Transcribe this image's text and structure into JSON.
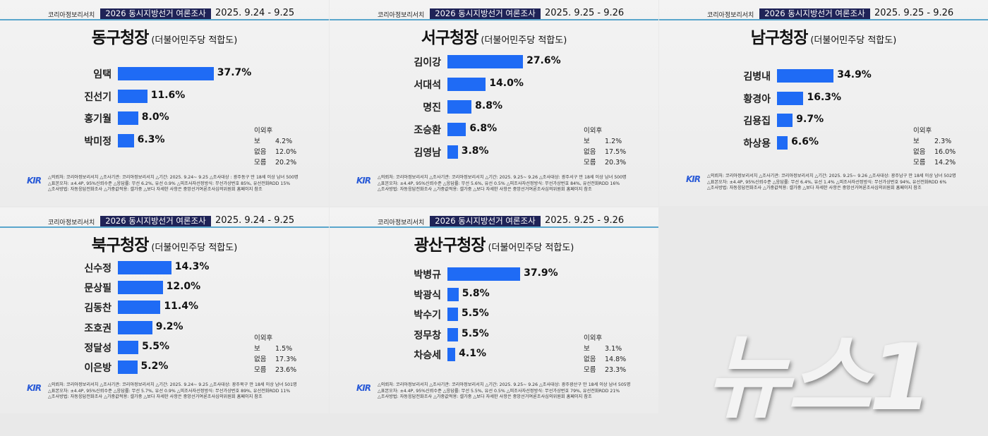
{
  "header": {
    "org": "코리아정보리서치",
    "survey_title": "2026 동시지방선거 여론조사"
  },
  "watermark": "뉴스1",
  "colors": {
    "bar": "#1f6bf5",
    "header_badge": "#1f2357",
    "header_line": "#5aa6cc"
  },
  "chart_data": [
    {
      "type": "bar",
      "orientation": "horizontal",
      "title": "동구청장",
      "subtitle": "(더불어민주당 적합도)",
      "date": "2025. 9.24 - 9.25",
      "categories": [
        "임택",
        "진선기",
        "홍기월",
        "박미정"
      ],
      "values": [
        37.7,
        11.6,
        8.0,
        6.3
      ],
      "labels": [
        "37.7%",
        "11.6%",
        "8.0%",
        "6.3%"
      ],
      "others": [
        {
          "label": "이외후보",
          "value": "4.2%"
        },
        {
          "label": "없음",
          "value": "12.0%"
        },
        {
          "label": "모름",
          "value": "20.2%"
        }
      ],
      "footnote": [
        "△의뢰처: 코리아정보리서치 △조사기관: 코리아정보리서치 △기간: 2025. 9.24~ 9.25 △조사대상 : 광주동구 만 18세 이상 남녀 500명",
        "△표본오차: ±4.4P, 95%신뢰수준 △응답률: 무선 6.2%, 유선 0.9% △피조사자선정방식: 무선가상번호 85%, 유선전화RDD 15%",
        "△조사방법: 자동응답전화조사 △가중값적용: 셀가중 △보다 자세한 사항은 중앙선거여론조사심의위원회 홈페이지 참조"
      ]
    },
    {
      "type": "bar",
      "orientation": "horizontal",
      "title": "서구청장",
      "subtitle": "(더불어민주당 적합도)",
      "date": "2025. 9.25 - 9.26",
      "categories": [
        "김이강",
        "서대석",
        "명진",
        "조승환",
        "김영남"
      ],
      "values": [
        27.6,
        14.0,
        8.8,
        6.8,
        3.8
      ],
      "labels": [
        "27.6%",
        "14.0%",
        "8.8%",
        "6.8%",
        "3.8%"
      ],
      "others": [
        {
          "label": "이외후보",
          "value": "1.2%"
        },
        {
          "label": "없음",
          "value": "17.5%"
        },
        {
          "label": "모름",
          "value": "20.3%"
        }
      ],
      "footnote": [
        "△의뢰처: 코리아정보리서치 △조사기관: 코리아정보리서치 △기간: 2025. 9.25~ 9.26 △조사대상: 광주서구 만 18세 이상 남녀 500명",
        "△표본오차: ±4.4P, 95%신뢰수준 △응답률: 무선 5.6%, 유선 0.5% △피조사자선정방식: 무선가상번호 84%, 유선전화RDD 16%",
        "△조사방법: 자동응답전화조사 △가중값적용: 셀가중 △보다 자세한 사항은 중앙선거여론조사심의위원회 홈페이지 참조"
      ]
    },
    {
      "type": "bar",
      "orientation": "horizontal",
      "title": "남구청장",
      "subtitle": "(더불어민주당 적합도)",
      "date": "2025. 9.25 - 9.26",
      "categories": [
        "김병내",
        "황경아",
        "김용집",
        "하상용"
      ],
      "values": [
        34.9,
        16.3,
        9.7,
        6.6
      ],
      "labels": [
        "34.9%",
        "16.3%",
        "9.7%",
        "6.6%"
      ],
      "others": [
        {
          "label": "이외후보",
          "value": "2.3%"
        },
        {
          "label": "없음",
          "value": "16.0%"
        },
        {
          "label": "모름",
          "value": "14.2%"
        }
      ],
      "footnote": [
        "△의뢰처: 코리아정보리서치 △조사기관: 코리아정보리서치 △기간: 2025. 9.25~ 9.26 △조사대상: 광주남구 만 18세 이상 남녀 502명",
        "△표본오차: ±4.4P, 95%신뢰수준 △응답률: 무선 6.4%, 유선 1.4% △피조사자선정방식: 무선가상번호 94%, 유선전화RDD 6%",
        "△조사방법: 자동응답전화조사 △가중값적용: 셀가중 △보다 자세한 사항은 중앙선거여론조사심의위원회 홈페이지 참조"
      ]
    },
    {
      "type": "bar",
      "orientation": "horizontal",
      "title": "북구청장",
      "subtitle": "(더불어민주당 적합도)",
      "date": "2025. 9.24 - 9.25",
      "categories": [
        "신수정",
        "문상필",
        "김동찬",
        "조호권",
        "정달성",
        "이은방"
      ],
      "values": [
        14.3,
        12.0,
        11.4,
        9.2,
        5.5,
        5.2
      ],
      "labels": [
        "14.3%",
        "12.0%",
        "11.4%",
        "9.2%",
        "5.5%",
        "5.2%"
      ],
      "others": [
        {
          "label": "이외후보",
          "value": "1.5%"
        },
        {
          "label": "없음",
          "value": "17.3%"
        },
        {
          "label": "모름",
          "value": "23.6%"
        }
      ],
      "footnote": [
        "△의뢰처: 코리아정보리서치 △조사기관: 코리아정보리서치 △기간: 2025. 9.24~ 9.25 △조사대상: 광주북구 만 18세 이상 남녀 501명",
        "△표본오차: ±4.4P, 95%신뢰수준 △응답률: 무선 5.7%, 유선 0.9% △피조사자선정방식: 무선가상번호 89%, 유선전화RDD 11%",
        "△조사방법: 자동응답전화조사 △가중값적용: 셀가중 △보다 자세한 사항은 중앙선거여론조사심의위원회 홈페이지 참조"
      ]
    },
    {
      "type": "bar",
      "orientation": "horizontal",
      "title": "광산구청장",
      "subtitle": "(더불어민주당 적합도)",
      "date": "2025. 9.25 - 9.26",
      "categories": [
        "박병규",
        "박광식",
        "박수기",
        "정무창",
        "차승세"
      ],
      "values": [
        37.9,
        5.8,
        5.5,
        5.5,
        4.1
      ],
      "labels": [
        "37.9%",
        "5.8%",
        "5.5%",
        "5.5%",
        "4.1%"
      ],
      "others": [
        {
          "label": "이외후보",
          "value": "3.1%"
        },
        {
          "label": "없음",
          "value": "14.8%"
        },
        {
          "label": "모름",
          "value": "23.3%"
        }
      ],
      "footnote": [
        "△의뢰처: 코리아정보리서치 △조사기관: 코리아정보리서치 △기간: 2025. 9.25~ 9.26 △조사대상: 광주광산구 만 18세 이상 남녀 505명",
        "△표본오차: ±4.4P, 95%신뢰수준 △응답률: 무선 5.5%, 유선 0.5% △피조사자선정방식: 무선가상번호 79%, 유선전화RDD 21%",
        "△조사방법: 자동응답전화조사 △가중값적용: 셀가중 △보다 자세한 사항은 중앙선거여론조사심의위원회 홈페이지 참조"
      ]
    }
  ]
}
